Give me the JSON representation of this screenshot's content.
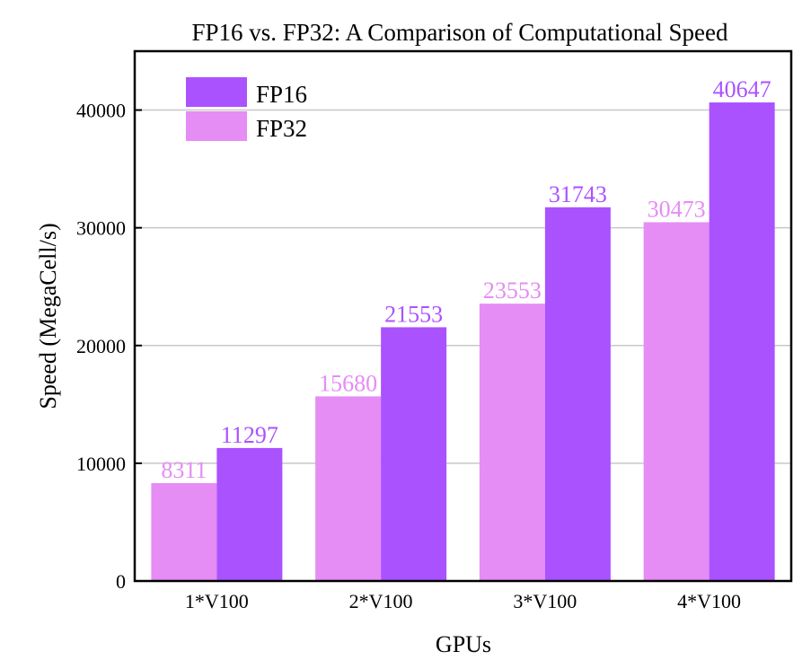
{
  "chart_data": {
    "type": "bar",
    "title": "FP16 vs. FP32: A Comparison of Computational Speed",
    "xlabel": "GPUs",
    "ylabel": "Speed (MegaCell/s)",
    "categories": [
      "1*V100",
      "2*V100",
      "3*V100",
      "4*V100"
    ],
    "series": [
      {
        "name": "FP32",
        "color": "#e58cf5",
        "values": [
          8311,
          15680,
          23553,
          30473
        ],
        "labels": [
          "8311",
          "15680",
          "23553",
          "30473"
        ]
      },
      {
        "name": "FP16",
        "color": "#ab52ff",
        "values": [
          11297,
          21553,
          31743,
          40647
        ],
        "labels": [
          "11297",
          "21553",
          "31743",
          "40647"
        ]
      }
    ],
    "legend": {
      "entries": [
        "FP16",
        "FP32"
      ],
      "position": "top-left"
    },
    "ylim": [
      0,
      45000
    ],
    "yticks": [
      0,
      10000,
      20000,
      30000,
      40000
    ],
    "ytick_labels": [
      "0",
      "10000",
      "20000",
      "30000",
      "40000"
    ],
    "grid": true
  }
}
